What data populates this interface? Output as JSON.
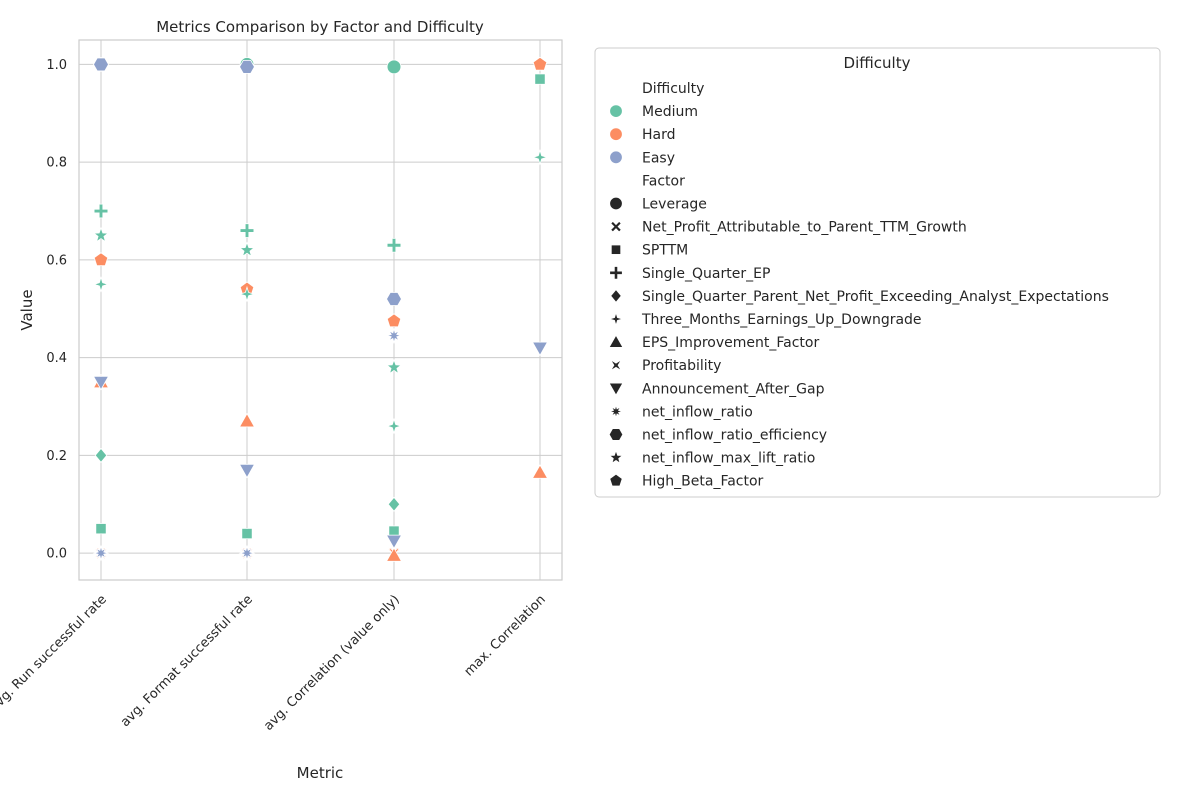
{
  "chart_data": {
    "type": "scatter",
    "title": "Metrics Comparison by Factor and Difficulty",
    "xlabel": "Metric",
    "ylabel": "Value",
    "categories": [
      "avg. Run successful rate",
      "avg. Format successful rate",
      "avg. Correlation (value only)",
      "max. Correlation"
    ],
    "ylim": [
      -0.055,
      1.05
    ],
    "yticks": [
      "0.0",
      "0.2",
      "0.4",
      "0.6",
      "0.8",
      "1.0"
    ],
    "grid": true,
    "legend": {
      "title": "Difficulty",
      "placement": "outside-right",
      "hue_header": "Difficulty",
      "style_header": "Factor",
      "difficulties": [
        {
          "name": "Medium",
          "color": "#66c2a5"
        },
        {
          "name": "Hard",
          "color": "#fc8d62"
        },
        {
          "name": "Easy",
          "color": "#8da0cb"
        }
      ],
      "factors": [
        {
          "name": "Leverage",
          "marker": "circle"
        },
        {
          "name": "Net_Profit_Attributable_to_Parent_TTM_Growth",
          "marker": "x"
        },
        {
          "name": "SPTTM",
          "marker": "square"
        },
        {
          "name": "Single_Quarter_EP",
          "marker": "plus"
        },
        {
          "name": "Single_Quarter_Parent_Net_Profit_Exceeding_Analyst_Expectations",
          "marker": "diamond"
        },
        {
          "name": "Three_Months_Earnings_Up_Downgrade",
          "marker": "star4"
        },
        {
          "name": "EPS_Improvement_Factor",
          "marker": "triangle-up"
        },
        {
          "name": "Profitability",
          "marker": "bowtie"
        },
        {
          "name": "Announcement_After_Gap",
          "marker": "triangle-down"
        },
        {
          "name": "net_inflow_ratio",
          "marker": "star8"
        },
        {
          "name": "net_inflow_ratio_efficiency",
          "marker": "hexagon"
        },
        {
          "name": "net_inflow_max_lift_ratio",
          "marker": "star5"
        },
        {
          "name": "High_Beta_Factor",
          "marker": "pentagon"
        }
      ]
    },
    "points": [
      {
        "metric": 0,
        "value": 1.0,
        "difficulty": "Easy",
        "marker": "circle"
      },
      {
        "metric": 0,
        "value": 1.0,
        "difficulty": "Easy",
        "marker": "hexagon"
      },
      {
        "metric": 0,
        "value": 0.7,
        "difficulty": "Medium",
        "marker": "plus"
      },
      {
        "metric": 0,
        "value": 0.65,
        "difficulty": "Medium",
        "marker": "star5"
      },
      {
        "metric": 0,
        "value": 0.6,
        "difficulty": "Hard",
        "marker": "pentagon"
      },
      {
        "metric": 0,
        "value": 0.55,
        "difficulty": "Medium",
        "marker": "star4"
      },
      {
        "metric": 0,
        "value": 0.35,
        "difficulty": "Hard",
        "marker": "triangle-up"
      },
      {
        "metric": 0,
        "value": 0.35,
        "difficulty": "Easy",
        "marker": "triangle-down"
      },
      {
        "metric": 0,
        "value": 0.2,
        "difficulty": "Medium",
        "marker": "diamond"
      },
      {
        "metric": 0,
        "value": 0.05,
        "difficulty": "Medium",
        "marker": "square"
      },
      {
        "metric": 0,
        "value": 0.0,
        "difficulty": "Hard",
        "marker": "x"
      },
      {
        "metric": 0,
        "value": 0.0,
        "difficulty": "Hard",
        "marker": "bowtie"
      },
      {
        "metric": 0,
        "value": 0.0,
        "difficulty": "Easy",
        "marker": "star8"
      },
      {
        "metric": 1,
        "value": 1.0,
        "difficulty": "Medium",
        "marker": "circle"
      },
      {
        "metric": 1,
        "value": 0.995,
        "difficulty": "Easy",
        "marker": "hexagon"
      },
      {
        "metric": 1,
        "value": 0.66,
        "difficulty": "Medium",
        "marker": "plus"
      },
      {
        "metric": 1,
        "value": 0.62,
        "difficulty": "Medium",
        "marker": "star5"
      },
      {
        "metric": 1,
        "value": 0.54,
        "difficulty": "Hard",
        "marker": "pentagon"
      },
      {
        "metric": 1,
        "value": 0.53,
        "difficulty": "Medium",
        "marker": "star4"
      },
      {
        "metric": 1,
        "value": 0.27,
        "difficulty": "Hard",
        "marker": "triangle-up"
      },
      {
        "metric": 1,
        "value": 0.17,
        "difficulty": "Easy",
        "marker": "triangle-down"
      },
      {
        "metric": 1,
        "value": 0.04,
        "difficulty": "Medium",
        "marker": "square"
      },
      {
        "metric": 1,
        "value": 0.0,
        "difficulty": "Hard",
        "marker": "x"
      },
      {
        "metric": 1,
        "value": 0.0,
        "difficulty": "Hard",
        "marker": "bowtie"
      },
      {
        "metric": 1,
        "value": 0.0,
        "difficulty": "Easy",
        "marker": "star8"
      },
      {
        "metric": 2,
        "value": 0.995,
        "difficulty": "Medium",
        "marker": "circle"
      },
      {
        "metric": 2,
        "value": 0.63,
        "difficulty": "Medium",
        "marker": "plus"
      },
      {
        "metric": 2,
        "value": 0.52,
        "difficulty": "Easy",
        "marker": "hexagon"
      },
      {
        "metric": 2,
        "value": 0.475,
        "difficulty": "Hard",
        "marker": "pentagon"
      },
      {
        "metric": 2,
        "value": 0.445,
        "difficulty": "Easy",
        "marker": "star8"
      },
      {
        "metric": 2,
        "value": 0.38,
        "difficulty": "Medium",
        "marker": "star5"
      },
      {
        "metric": 2,
        "value": 0.26,
        "difficulty": "Medium",
        "marker": "star4"
      },
      {
        "metric": 2,
        "value": 0.1,
        "difficulty": "Medium",
        "marker": "diamond"
      },
      {
        "metric": 2,
        "value": 0.045,
        "difficulty": "Medium",
        "marker": "square"
      },
      {
        "metric": 2,
        "value": 0.025,
        "difficulty": "Easy",
        "marker": "triangle-down"
      },
      {
        "metric": 2,
        "value": 0.0,
        "difficulty": "Hard",
        "marker": "x"
      },
      {
        "metric": 2,
        "value": 0.0,
        "difficulty": "Hard",
        "marker": "bowtie"
      },
      {
        "metric": 2,
        "value": -0.005,
        "difficulty": "Hard",
        "marker": "triangle-up"
      },
      {
        "metric": 3,
        "value": 1.0,
        "difficulty": "Hard",
        "marker": "pentagon"
      },
      {
        "metric": 3,
        "value": 0.97,
        "difficulty": "Medium",
        "marker": "square"
      },
      {
        "metric": 3,
        "value": 0.81,
        "difficulty": "Medium",
        "marker": "star4"
      },
      {
        "metric": 3,
        "value": 0.42,
        "difficulty": "Easy",
        "marker": "triangle-down"
      },
      {
        "metric": 3,
        "value": 0.165,
        "difficulty": "Hard",
        "marker": "triangle-up"
      }
    ]
  }
}
